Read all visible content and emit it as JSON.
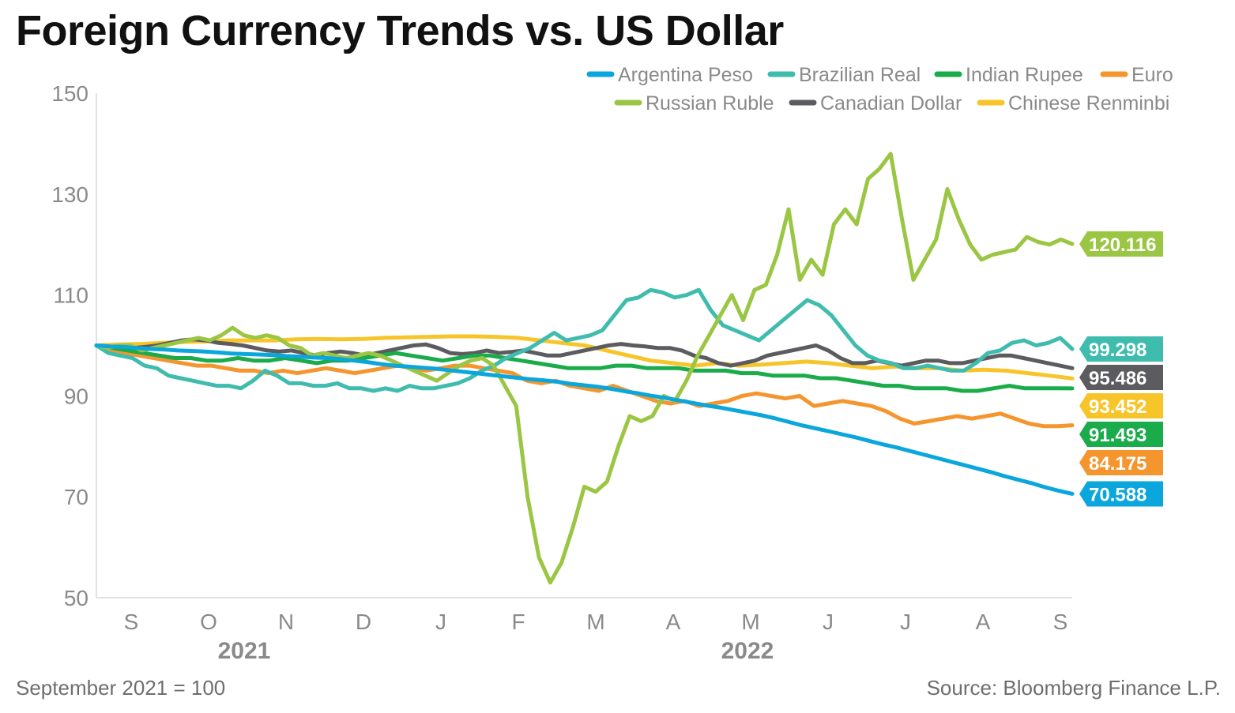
{
  "title": "Foreign Currency Trends vs. US Dollar",
  "footnote": "September 2021 = 100",
  "source": "Source: Bloomberg Finance L.P.",
  "chart_data": {
    "type": "line",
    "ylim": [
      50,
      150
    ],
    "yticks": [
      50,
      70,
      90,
      110,
      130,
      150
    ],
    "x_month_labels": [
      "S",
      "O",
      "N",
      "D",
      "J",
      "F",
      "M",
      "A",
      "M",
      "J",
      "J",
      "A",
      "S"
    ],
    "x_year_labels": [
      {
        "label": "2021",
        "month_index": 1.5
      },
      {
        "label": "2022",
        "month_index": 8
      }
    ],
    "x_start": "2021-09-01",
    "x_end": "2022-09-30",
    "grid": false,
    "legend_position": "top-right",
    "series": [
      {
        "name": "Argentina Peso",
        "color": "#0aa6dc",
        "end_label": "70.588",
        "values": [
          100,
          99.8,
          99.7,
          99.5,
          99.3,
          99.2,
          99.0,
          98.9,
          98.8,
          98.6,
          98.4,
          98.3,
          98.2,
          98.1,
          97.9,
          97.8,
          97.6,
          97.5,
          97.3,
          97.0,
          96.7,
          96.3,
          96.0,
          95.8,
          95.6,
          95.4,
          95.1,
          94.8,
          94.5,
          94.2,
          93.9,
          93.6,
          93.3,
          93.1,
          92.8,
          92.4,
          92.1,
          91.8,
          91.4,
          90.9,
          90.5,
          90.0,
          89.6,
          89.1,
          88.6,
          88.1,
          87.7,
          87.2,
          86.7,
          86.2,
          85.6,
          84.9,
          84.2,
          83.6,
          83.0,
          82.4,
          81.8,
          81.1,
          80.4,
          79.8,
          79.1,
          78.4,
          77.7,
          77.0,
          76.3,
          75.6,
          74.9,
          74.1,
          73.4,
          72.7,
          71.9,
          71.2,
          70.588
        ]
      },
      {
        "name": "Brazilian Real",
        "color": "#3fbcad",
        "end_label": "99.298",
        "values": [
          100,
          98.5,
          98.0,
          97.5,
          96.0,
          95.5,
          94.0,
          93.5,
          93.0,
          92.5,
          92.0,
          92.0,
          91.5,
          93.0,
          95.0,
          94.0,
          92.5,
          92.5,
          92.0,
          92.0,
          92.5,
          91.5,
          91.5,
          91.0,
          91.5,
          91.0,
          92.0,
          91.5,
          91.5,
          92.0,
          92.5,
          93.5,
          95.0,
          96.0,
          97.5,
          98.5,
          99.5,
          101.0,
          102.5,
          101.0,
          101.5,
          102.0,
          103.0,
          106.0,
          109.0,
          109.5,
          111.0,
          110.5,
          109.5,
          110.0,
          111.0,
          107.0,
          104.0,
          103.0,
          102.0,
          101.0,
          103.0,
          105.0,
          107.0,
          109.0,
          108.0,
          106.0,
          103.0,
          100.0,
          98.0,
          97.0,
          96.5,
          95.5,
          95.5,
          96.0,
          95.5,
          95.0,
          95.0,
          96.5,
          98.5,
          99.0,
          100.5,
          101.0,
          100.0,
          100.5,
          101.5,
          99.298
        ]
      },
      {
        "name": "Indian Rupee",
        "color": "#1aab4a",
        "end_label": "91.493",
        "values": [
          100,
          99.5,
          99.0,
          98.5,
          98.0,
          97.5,
          97.5,
          97.0,
          97.0,
          97.5,
          97.0,
          97.0,
          97.5,
          97.0,
          96.5,
          97.0,
          97.0,
          97.5,
          98.0,
          98.5,
          98.0,
          97.5,
          97.0,
          97.5,
          98.0,
          98.0,
          97.5,
          97.0,
          96.5,
          96.0,
          95.5,
          95.5,
          95.5,
          96.0,
          96.0,
          95.5,
          95.5,
          95.5,
          95.0,
          95.0,
          95.0,
          94.5,
          94.5,
          94.0,
          94.0,
          94.0,
          93.5,
          93.5,
          93.0,
          92.5,
          92.0,
          92.0,
          91.5,
          91.5,
          91.5,
          91.0,
          91.0,
          91.5,
          92.0,
          91.5,
          91.5,
          91.5,
          91.493
        ]
      },
      {
        "name": "Euro",
        "color": "#f5952e",
        "end_label": "84.175",
        "values": [
          100,
          99.0,
          98.5,
          98.0,
          97.5,
          97.0,
          96.5,
          96.0,
          96.0,
          95.5,
          95.0,
          95.0,
          94.5,
          95.0,
          94.5,
          95.0,
          95.5,
          95.0,
          94.5,
          95.0,
          95.5,
          96.0,
          95.5,
          95.0,
          95.5,
          96.0,
          96.0,
          95.5,
          95.0,
          94.5,
          93.0,
          92.5,
          93.0,
          92.0,
          91.5,
          91.0,
          92.0,
          91.0,
          90.0,
          89.0,
          88.5,
          89.0,
          88.0,
          88.5,
          89.0,
          90.0,
          90.5,
          90.0,
          89.5,
          90.0,
          88.0,
          88.5,
          89.0,
          88.5,
          88.0,
          87.0,
          85.5,
          84.5,
          85.0,
          85.5,
          86.0,
          85.5,
          86.0,
          86.5,
          85.5,
          84.5,
          84.0,
          84.0,
          84.175
        ]
      },
      {
        "name": "Russian Ruble",
        "color": "#9bc644",
        "end_label": "120.116",
        "values": [
          100,
          99.5,
          100.0,
          100.0,
          99.0,
          99.5,
          100.0,
          100.5,
          101.0,
          101.5,
          101.0,
          102.0,
          103.5,
          102.0,
          101.5,
          102.0,
          101.5,
          100.0,
          99.5,
          98.0,
          98.5,
          98.0,
          97.5,
          98.0,
          98.5,
          98.0,
          97.0,
          96.0,
          95.0,
          94.0,
          93.0,
          94.5,
          96.0,
          97.0,
          97.5,
          96.0,
          92.0,
          88.0,
          70.0,
          58.0,
          53.0,
          57.0,
          64.0,
          72.0,
          71.0,
          73.0,
          80.0,
          86.0,
          85.0,
          86.0,
          90.0,
          89.0,
          93.0,
          98.0,
          102.0,
          106.0,
          110.0,
          105.0,
          111.0,
          112.0,
          118.0,
          127.0,
          113.0,
          117.0,
          114.0,
          124.0,
          127.0,
          124.0,
          133.0,
          135.0,
          138.0,
          125.0,
          113.0,
          117.0,
          121.0,
          131.0,
          125.0,
          120.0,
          117.0,
          118.0,
          118.5,
          119.0,
          121.5,
          120.5,
          120.0,
          121.0,
          120.116
        ]
      },
      {
        "name": "Canadian Dollar",
        "color": "#5c5c60",
        "end_label": "95.486",
        "values": [
          100,
          99.8,
          99.5,
          99.5,
          99.7,
          100.0,
          100.5,
          101.0,
          101.2,
          101.0,
          100.5,
          100.3,
          100.0,
          99.5,
          99.0,
          98.8,
          99.0,
          98.5,
          98.0,
          98.5,
          98.8,
          98.5,
          98.0,
          98.5,
          99.0,
          99.5,
          100.0,
          100.2,
          99.5,
          98.5,
          98.3,
          98.5,
          99.0,
          98.5,
          98.7,
          99.0,
          98.5,
          98.0,
          98.0,
          98.5,
          99.0,
          99.5,
          100.0,
          100.3,
          100.0,
          99.8,
          99.5,
          99.5,
          99.0,
          98.0,
          97.5,
          96.5,
          96.0,
          96.5,
          97.0,
          98.0,
          98.5,
          99.0,
          99.5,
          100.0,
          99.0,
          97.5,
          96.5,
          96.5,
          97.0,
          96.5,
          96.0,
          96.5,
          97.0,
          97.0,
          96.5,
          96.5,
          97.0,
          97.5,
          98.0,
          98.0,
          97.5,
          97.0,
          96.5,
          96.0,
          95.486
        ]
      },
      {
        "name": "Chinese Renminbi",
        "color": "#f7c52a",
        "end_label": "93.452",
        "values": [
          100,
          100.2,
          100.3,
          100.5,
          100.7,
          100.8,
          101.0,
          101.0,
          101.0,
          101.2,
          101.3,
          101.2,
          101.3,
          101.5,
          101.6,
          101.7,
          101.8,
          101.8,
          101.7,
          101.5,
          101.0,
          100.5,
          100.0,
          99.0,
          98.0,
          97.0,
          96.5,
          96.0,
          96.5,
          96.0,
          96.2,
          96.5,
          96.8,
          96.5,
          96.0,
          95.5,
          95.8,
          95.5,
          95.5,
          95.0,
          95.2,
          95.0,
          94.5,
          94.0,
          93.452
        ]
      }
    ]
  }
}
